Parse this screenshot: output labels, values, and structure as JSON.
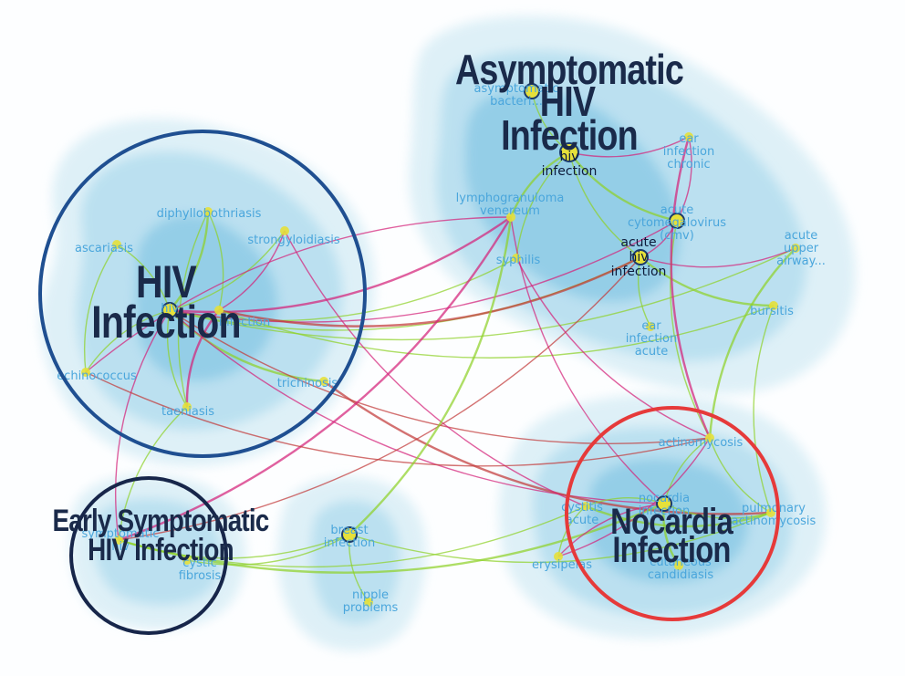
{
  "colors": {
    "background": "#fdfeff",
    "density_light": "#d9eef6",
    "density_mid": "#b5deef",
    "density_dark": "#8ecbe6",
    "edge_green": "#8fd12a",
    "edge_magenta": "#d4237a",
    "edge_red": "#c23a3a",
    "node_fill": "#e6e03a",
    "node_ring": "#1b3a6b",
    "ring_blue": "#1f4f91",
    "ring_navy": "#17264a",
    "ring_red": "#e63a3a",
    "title": "#1a2a4a",
    "label": "#4aa6dc"
  },
  "clusters": [
    {
      "id": "hiv",
      "title_lines": [
        "HIV",
        "Infection"
      ]
    },
    {
      "id": "asymptomatic",
      "title_lines": [
        "Asymptomatic",
        "HIV",
        "Infection"
      ]
    },
    {
      "id": "early",
      "title_lines": [
        "Early Symptomatic",
        "HIV Infection"
      ]
    },
    {
      "id": "nocardia",
      "title_lines": [
        "Nocardia",
        "Infection"
      ]
    }
  ],
  "nodes": [
    {
      "id": "diphyllobothriasis",
      "lines": [
        "diphyllobothriasis"
      ]
    },
    {
      "id": "strongyloidiasis",
      "lines": [
        "strongyloidiasis"
      ]
    },
    {
      "id": "ascariasis",
      "lines": [
        "ascariasis"
      ]
    },
    {
      "id": "hiv-a",
      "lines": [
        "hiv"
      ]
    },
    {
      "id": "mycobacterium",
      "lines": [
        "infection"
      ]
    },
    {
      "id": "echinococcus",
      "lines": [
        "echinococcus"
      ]
    },
    {
      "id": "trichinosis",
      "lines": [
        "trichinosis"
      ]
    },
    {
      "id": "taeniasis",
      "lines": [
        "taeniasis"
      ]
    },
    {
      "id": "asymptomatic-bacteriuria",
      "lines": [
        "asymptomatic",
        "bacteri..."
      ]
    },
    {
      "id": "hiv-infection-asym",
      "lines": [
        "hiv",
        "infection"
      ],
      "dark": true
    },
    {
      "id": "ear-infection-chronic",
      "lines": [
        "ear",
        "infection",
        "chronic"
      ]
    },
    {
      "id": "lgv",
      "lines": [
        "lymphogranuloma",
        "venereum"
      ]
    },
    {
      "id": "cmv",
      "lines": [
        "acute",
        "cytomegalovirus",
        "(cmv)"
      ]
    },
    {
      "id": "acute-upper",
      "lines": [
        "acute",
        "upper",
        "airway..."
      ]
    },
    {
      "id": "syphilis",
      "lines": [
        "syphilis"
      ]
    },
    {
      "id": "acute-hiv",
      "lines": [
        "acute",
        "hiv",
        "infection"
      ],
      "dark": true
    },
    {
      "id": "bursitis",
      "lines": [
        "bursitis"
      ]
    },
    {
      "id": "ear-infection-acute",
      "lines": [
        "ear",
        "infection",
        "acute"
      ]
    },
    {
      "id": "actinomycosis",
      "lines": [
        "actinomycosis"
      ]
    },
    {
      "id": "cystitis",
      "lines": [
        "cystitis",
        "acute"
      ]
    },
    {
      "id": "nocardia-node",
      "lines": [
        "nocardia",
        "infection"
      ]
    },
    {
      "id": "pulmonary",
      "lines": [
        "pulmonary",
        "actinomycosis"
      ]
    },
    {
      "id": "erysipelas",
      "lines": [
        "erysipelas"
      ]
    },
    {
      "id": "candidiasis",
      "lines": [
        "cutaneous",
        "candidiasis"
      ]
    },
    {
      "id": "symptomatic",
      "lines": [
        "symptomatic",
        "hiv"
      ]
    },
    {
      "id": "cystic-fibrosis",
      "lines": [
        "cystic",
        "fibrosis"
      ]
    },
    {
      "id": "breast",
      "lines": [
        "breast",
        "infection"
      ]
    },
    {
      "id": "nipple",
      "lines": [
        "nipple",
        "problems"
      ]
    }
  ]
}
